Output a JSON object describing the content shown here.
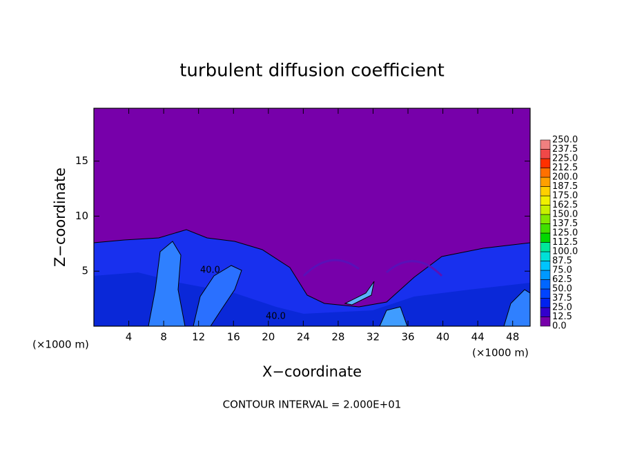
{
  "chart_data": {
    "type": "contour",
    "title": "turbulent diffusion coefficient",
    "x_label": "X−coordinate",
    "y_label": "Z−coordinate",
    "x_unit": "(×1000 m)",
    "footer": "CONTOUR INTERVAL = 2.000E+01",
    "annotations": [
      "40.0",
      "40.0"
    ],
    "xlim": [
      0,
      50
    ],
    "ylim": [
      0,
      19.8
    ],
    "xticks": [
      4,
      8,
      12,
      16,
      20,
      24,
      28,
      32,
      36,
      40,
      44,
      48
    ],
    "yticks": [
      5,
      10,
      15
    ],
    "colorbar": {
      "ticks": [
        {
          "value": 0,
          "label": "0.0"
        },
        12.5,
        {
          "value": 25,
          "label": "25.0"
        },
        37.5,
        {
          "value": 50,
          "label": "50.0"
        },
        62.5,
        {
          "value": 75,
          "label": "75.0"
        },
        87.5,
        {
          "value": 100,
          "label": "100.0"
        },
        112.5,
        {
          "value": 125,
          "label": "125.0"
        },
        137.5,
        {
          "value": 150,
          "label": "150.0"
        },
        162.5,
        {
          "value": 175,
          "label": "175.0"
        },
        187.5,
        {
          "value": 200,
          "label": "200.0"
        },
        212.5,
        {
          "value": 225,
          "label": "225.0"
        },
        237.5,
        {
          "value": 250,
          "label": "250.0"
        }
      ],
      "colors": [
        "#7700aa",
        "#3300cc",
        "#0022ee",
        "#0044ff",
        "#0066ff",
        "#0099ff",
        "#00c4ff",
        "#00e0d8",
        "#00e89a",
        "#00d800",
        "#40e000",
        "#80e800",
        "#c8f000",
        "#f0f000",
        "#ffd000",
        "#ffa000",
        "#ff7000",
        "#ff3000",
        "#f04848",
        "#f08080"
      ]
    }
  }
}
